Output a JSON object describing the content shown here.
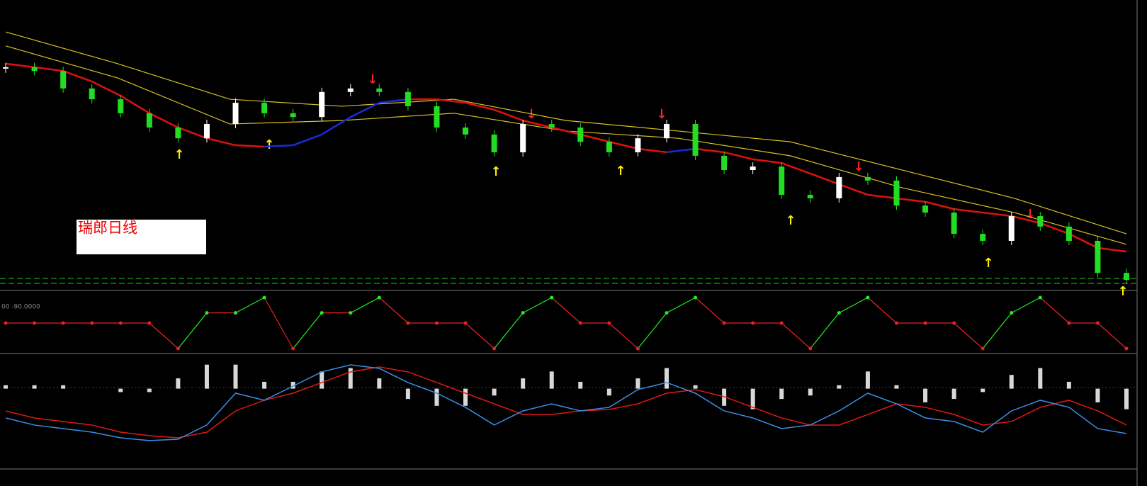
{
  "chart_data": [
    {
      "type": "candlestick",
      "label": "瑞郎日线",
      "ylim": [
        0,
        100
      ],
      "up_color": "#ffffff",
      "down_color": "#22dd22",
      "close": [
        80.3,
        78.9,
        72.4,
        68.4,
        63.2,
        57.9,
        53.9,
        59.2,
        67.1,
        63.2,
        61.8,
        71.1,
        72.4,
        71.1,
        65.8,
        57.9,
        55.3,
        48.7,
        59.2,
        57.9,
        52.6,
        48.7,
        53.9,
        59.2,
        47.4,
        42.1,
        43.4,
        32.9,
        31.6,
        39.5,
        38.2,
        28.9,
        26.3,
        18.4,
        15.8,
        25,
        21.1,
        15.8,
        3.9,
        1.3
      ],
      "ma": {
        "color": "#e01010",
        "rising_color": "#1a2ae0",
        "values": [
          81.6,
          80.3,
          78.9,
          75,
          69.7,
          63.2,
          57.9,
          53.9,
          51.3,
          50.8,
          51.3,
          55.3,
          61.8,
          67.1,
          68.4,
          68.4,
          67.1,
          64.5,
          60.5,
          57.9,
          55.3,
          52.6,
          50,
          48.7,
          50,
          48.7,
          46.1,
          44.7,
          40.8,
          36.8,
          32.9,
          31.6,
          30.3,
          27.6,
          26.3,
          25,
          22.4,
          18.4,
          13.2,
          11.8
        ]
      },
      "band_upper": {
        "color": "#d8c020",
        "values": [
          93.4,
          81.6,
          68.4,
          65.8,
          68.4,
          60.5,
          56.6,
          52.6,
          42.1,
          31.6,
          18.4
        ]
      },
      "band_lower": {
        "color": "#d8c020",
        "values": [
          88.2,
          76.3,
          59.2,
          60.5,
          63.2,
          56.6,
          53.9,
          47.4,
          35.5,
          26.3,
          14.5
        ]
      }
    },
    {
      "type": "dots",
      "header": "00 -90.0000",
      "ylim": [
        -100,
        100
      ],
      "color": "#ee2020",
      "up_color": "#22ee22",
      "values": [
        0,
        0,
        0,
        0,
        0,
        0,
        -100,
        40,
        40,
        100,
        -100,
        40,
        40,
        100,
        0,
        0,
        0,
        -100,
        40,
        100,
        0,
        0,
        -100,
        40,
        100,
        0,
        0,
        0,
        -100,
        40,
        100,
        0,
        0,
        0,
        -100,
        40,
        100,
        0,
        0,
        -100
      ]
    },
    {
      "type": "macd",
      "ylim": [
        -115,
        45
      ],
      "hist_color": "#d8d8d8",
      "hist": [
        5,
        5,
        5,
        0,
        -5,
        -5,
        15,
        35,
        35,
        10,
        10,
        25,
        30,
        15,
        -15,
        -25,
        -25,
        -10,
        15,
        25,
        10,
        -10,
        15,
        30,
        5,
        -25,
        -30,
        -15,
        -10,
        5,
        25,
        5,
        -20,
        -15,
        -5,
        20,
        30,
        10,
        -20,
        -30
      ],
      "fast": {
        "color": "#3a8ee8",
        "values": [
          -42.7,
          -53,
          -58.2,
          -63.4,
          -71.6,
          -75.7,
          -73.7,
          -53,
          -6.6,
          -16.9,
          3.7,
          24.4,
          34.7,
          29.5,
          8.9,
          -6.6,
          -27.2,
          -53,
          -32.4,
          -22.1,
          -32.4,
          -27.2,
          -1.4,
          8.9,
          -6.6,
          -32.4,
          -42.7,
          -58.2,
          -53,
          -32.4,
          -6.6,
          -22.1,
          -42.7,
          -47.9,
          -63.4,
          -32.4,
          -16.9,
          -27.2,
          -58.2,
          -65.4
        ]
      },
      "slow": {
        "color": "#e01818",
        "values": [
          -32.4,
          -42.7,
          -47.9,
          -53,
          -63.4,
          -68.5,
          -71.6,
          -63.4,
          -32.4,
          -16.9,
          -6.6,
          8.9,
          24.4,
          31.6,
          24.4,
          8.9,
          -6.6,
          -22.1,
          -37.6,
          -37.6,
          -32.4,
          -30.3,
          -22.1,
          -6.6,
          -1.4,
          -11.7,
          -27.2,
          -42.7,
          -53,
          -53,
          -37.6,
          -22.1,
          -27.2,
          -37.6,
          -53,
          -47.9,
          -27.2,
          -16.9,
          -32.4,
          -53
        ]
      }
    }
  ]
}
